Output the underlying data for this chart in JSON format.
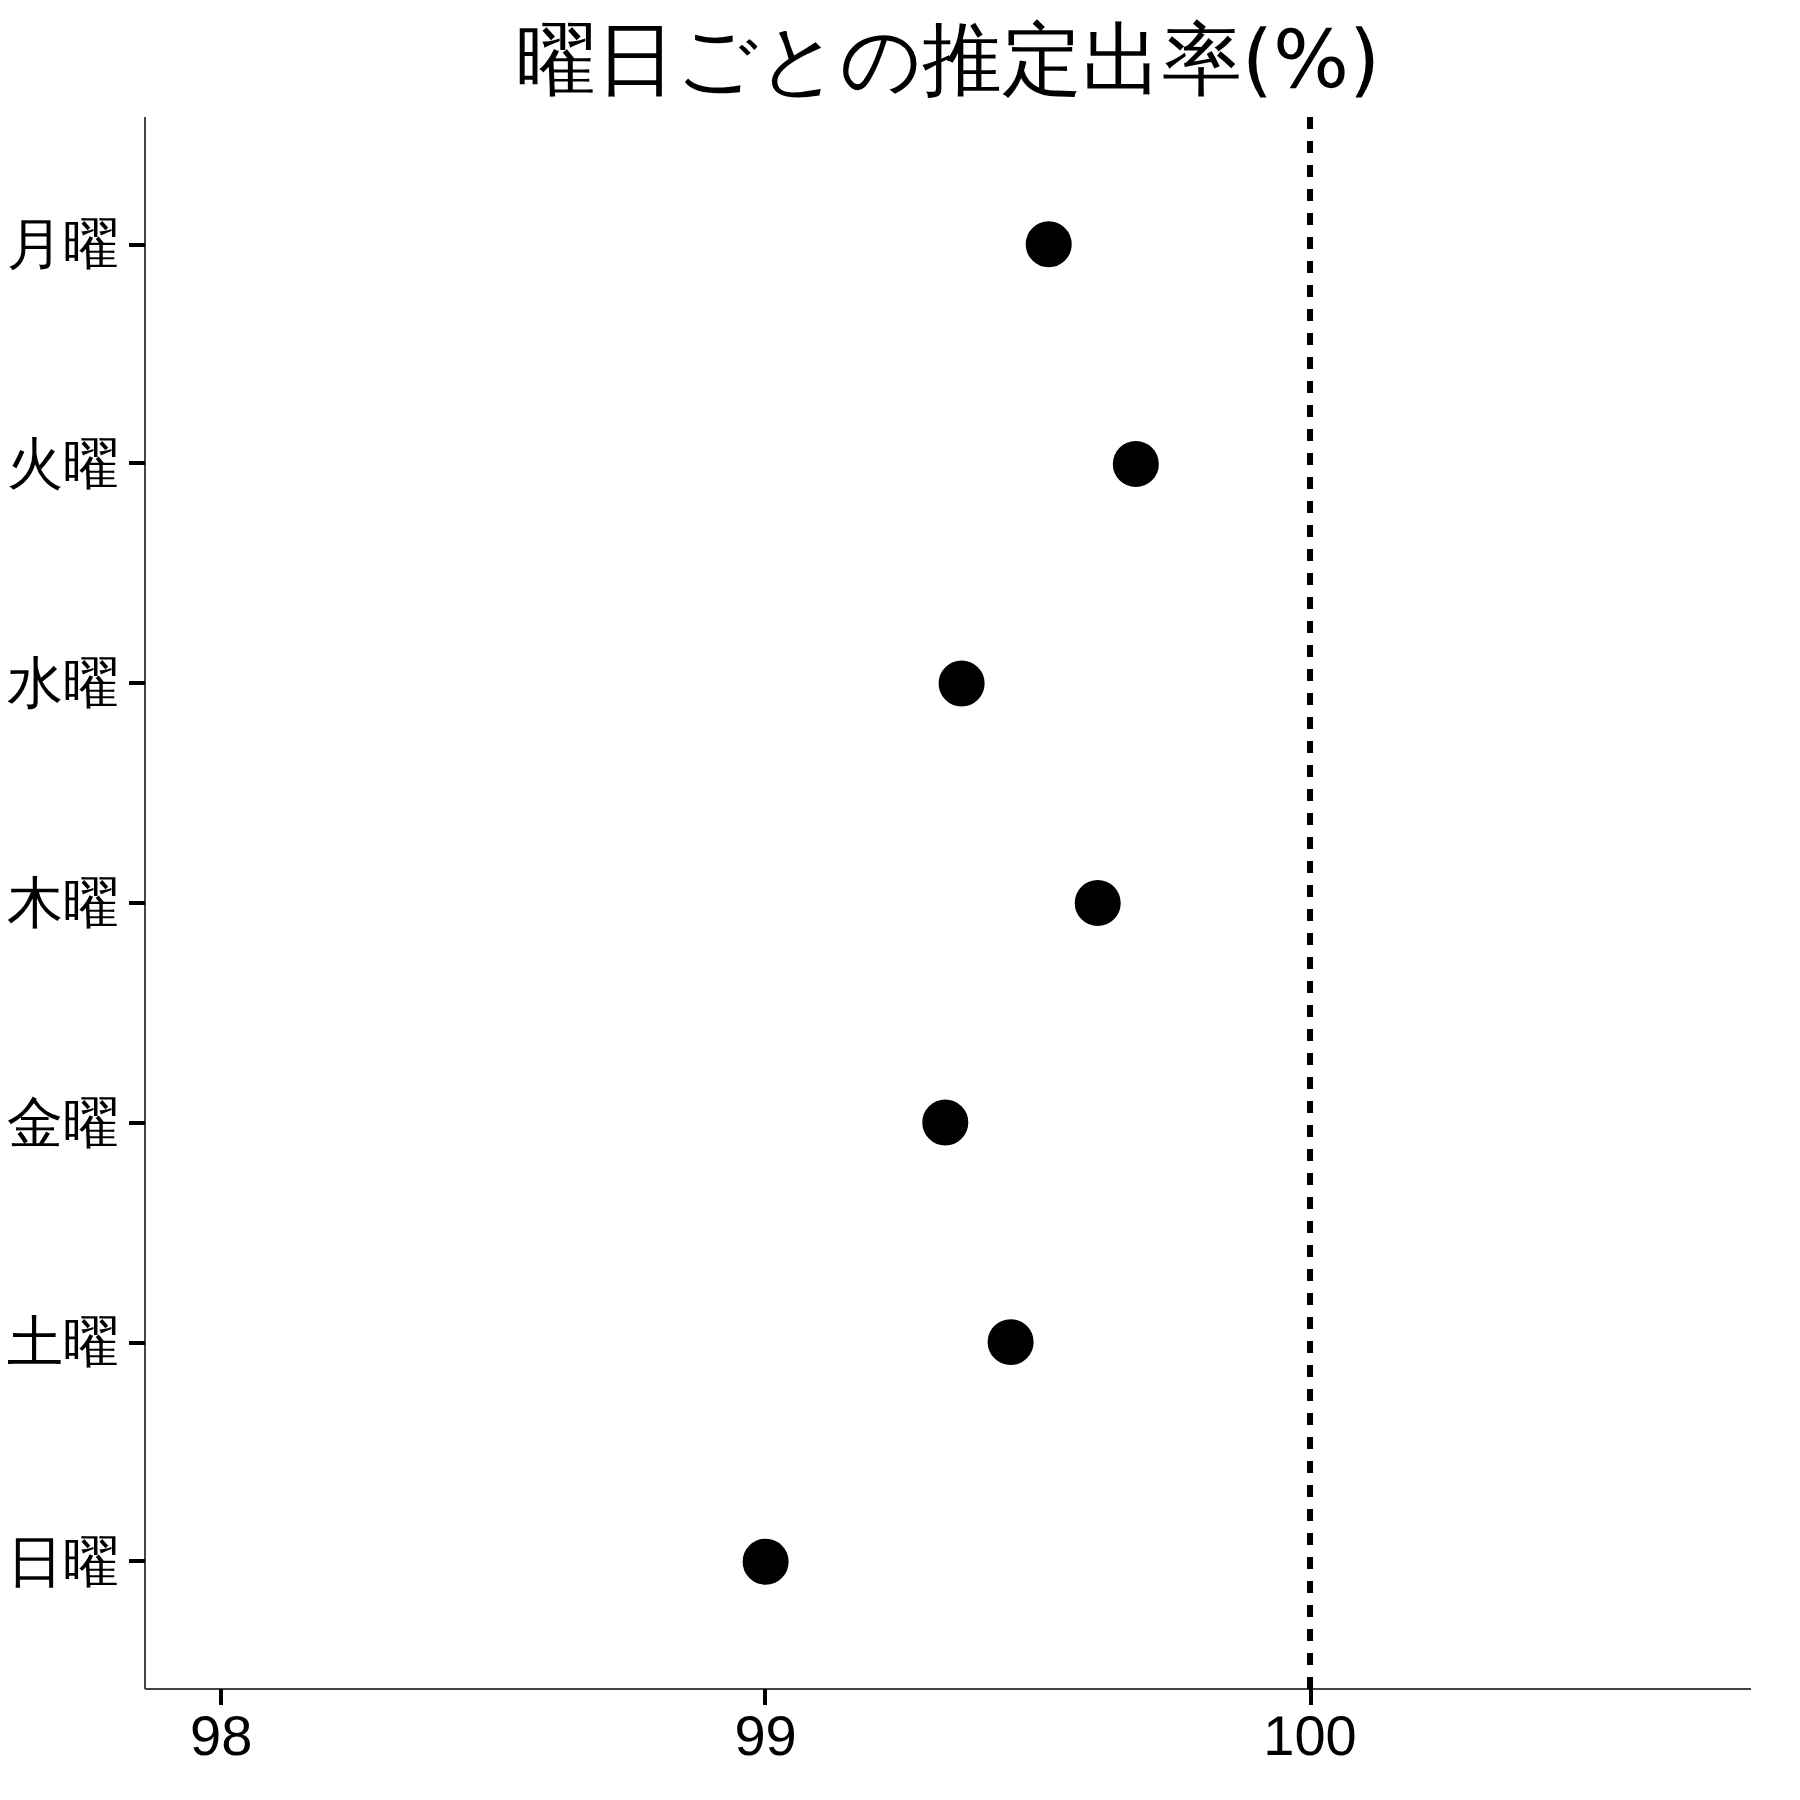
{
  "chart_data": {
    "type": "scatter",
    "orientation": "horizontal",
    "title": "曜日ごとの推定出率(%)",
    "categories": [
      "月曜",
      "火曜",
      "水曜",
      "木曜",
      "金曜",
      "土曜",
      "日曜"
    ],
    "series": [
      {
        "color": "#000000",
        "values": [
          99.52,
          99.68,
          99.36,
          99.61,
          99.33,
          99.45,
          99.0
        ]
      }
    ],
    "xlim": [
      97.86,
      100.81
    ],
    "xticks": [
      98,
      99,
      100
    ],
    "ref_lines": [
      {
        "axis": "x",
        "value": 100,
        "color": "#000000",
        "line_style": "dashed"
      }
    ],
    "marker": "circle"
  }
}
